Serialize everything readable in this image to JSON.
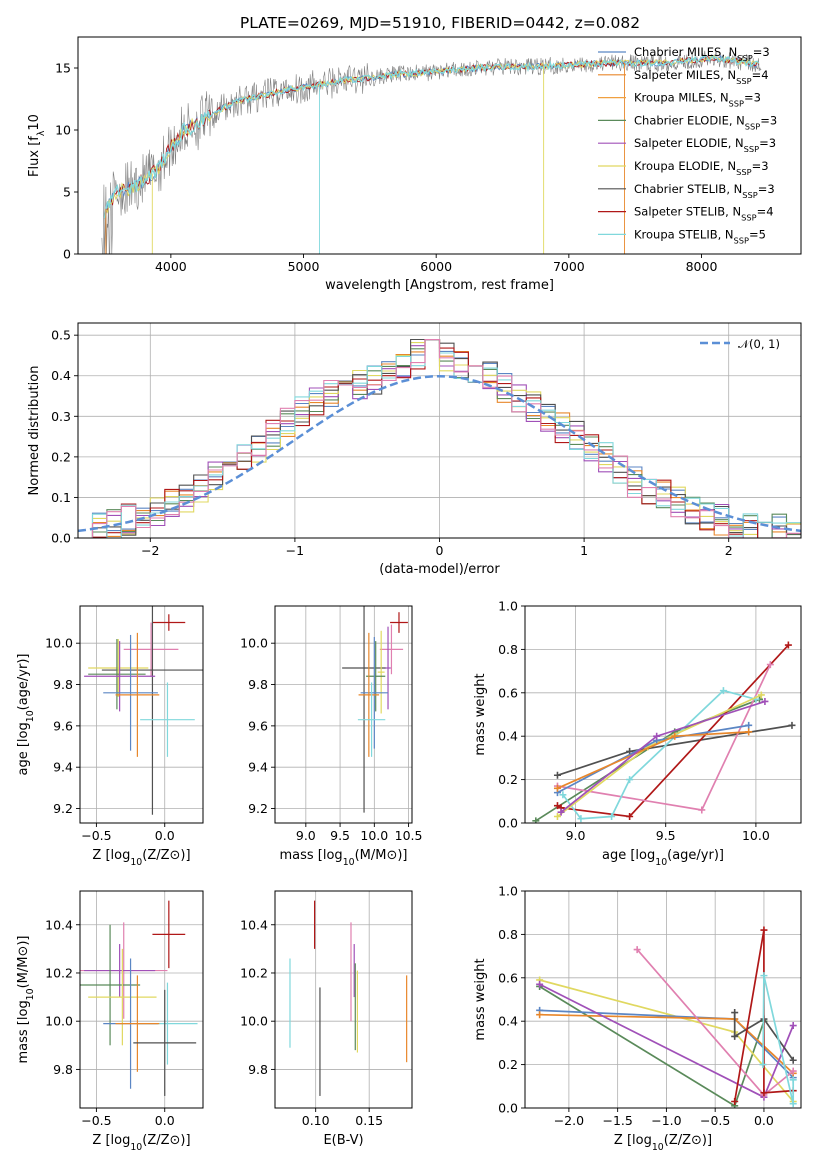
{
  "title": "PLATE=0269, MJD=51910, FIBERID=0442, z=0.082",
  "colors": {
    "Chabrier MILES": "#5b86c4",
    "Salpeter MILES": "#e8872b",
    "Kroupa MILES": "#f0a040",
    "Chabrier ELODIE": "#5a8a5a",
    "Salpeter ELODIE": "#a050b8",
    "Kroupa ELODIE": "#e0d860",
    "Chabrier STELIB": "#505050",
    "Salpeter STELIB": "#b01818",
    "Kroupa STELIB": "#80d8dc",
    "pink": "#e080b0",
    "data": "#808080",
    "normal": "#5b8fd6"
  },
  "chart_data": [
    {
      "id": "spectrum",
      "type": "line",
      "xlabel": "wavelength [Angstrom, rest frame]",
      "ylabel": "Flux [f",
      "xlim": [
        3300,
        8750
      ],
      "ylim": [
        0,
        17.5
      ],
      "xticks": [
        "4000",
        "5000",
        "6000",
        "7000",
        "8000"
      ],
      "xtick_values": [
        4000,
        5000,
        6000,
        7000,
        8000
      ],
      "yticks": [
        "0",
        "5",
        "10",
        "15"
      ],
      "ytick_values": [
        0,
        5,
        10,
        15
      ],
      "legend_position": "right",
      "legend": [
        {
          "label": "Chabrier MILES, N",
          "sub": "SSP",
          "suffix": "=3",
          "key": "Chabrier MILES"
        },
        {
          "label": "Salpeter MILES, N",
          "sub": "SSP",
          "suffix": "=4",
          "key": "Salpeter MILES"
        },
        {
          "label": "Kroupa MILES, N",
          "sub": "SSP",
          "suffix": "=3",
          "key": "Kroupa MILES"
        },
        {
          "label": "Chabrier ELODIE, N",
          "sub": "SSP",
          "suffix": "=3",
          "key": "Chabrier ELODIE"
        },
        {
          "label": "Salpeter ELODIE, N",
          "sub": "SSP",
          "suffix": "=3",
          "key": "Salpeter ELODIE"
        },
        {
          "label": "Kroupa ELODIE, N",
          "sub": "SSP",
          "suffix": "=3",
          "key": "Kroupa ELODIE"
        },
        {
          "label": "Chabrier STELIB, N",
          "sub": "SSP",
          "suffix": "=3",
          "key": "Chabrier STELIB"
        },
        {
          "label": "Salpeter STELIB, N",
          "sub": "SSP",
          "suffix": "=4",
          "key": "Salpeter STELIB"
        },
        {
          "label": "Kroupa STELIB, N",
          "sub": "SSP",
          "suffix": "=5",
          "key": "Kroupa STELIB"
        }
      ],
      "continuum": {
        "x": [
          3500,
          3600,
          3700,
          3800,
          3900,
          4000,
          4100,
          4200,
          4300,
          4400,
          4500,
          4700,
          4900,
          5100,
          5300,
          5500,
          5700,
          5900,
          6100,
          6300,
          6500,
          6700,
          6900,
          7100,
          7300,
          7500,
          7700,
          7900,
          8100,
          8300,
          8400
        ],
        "y": [
          3.5,
          5.0,
          5.3,
          6.0,
          6.8,
          8.6,
          10.0,
          10.5,
          11.2,
          11.8,
          12.3,
          12.8,
          13.3,
          13.6,
          14.0,
          14.2,
          14.5,
          14.6,
          14.8,
          15.0,
          15.1,
          15.1,
          15.2,
          15.3,
          15.4,
          15.4,
          15.4,
          15.6,
          15.8,
          15.5,
          15.3
        ]
      }
    },
    {
      "id": "residuals",
      "type": "line",
      "xlabel": "(data-model)/error",
      "ylabel": "Normed distribution",
      "xlim": [
        -2.5,
        2.5
      ],
      "ylim": [
        0,
        0.53
      ],
      "xticks": [
        "−2",
        "−1",
        "0",
        "1",
        "2"
      ],
      "xtick_values": [
        -2,
        -1,
        0,
        1,
        2
      ],
      "yticks": [
        "0.0",
        "0.1",
        "0.2",
        "0.3",
        "0.4",
        "0.5"
      ],
      "ytick_values": [
        0,
        0.1,
        0.2,
        0.3,
        0.4,
        0.5
      ],
      "grid": true,
      "legend": "𝒩(0, 1)",
      "legend_position": "top-right",
      "hist_x": [
        -2.5,
        -2.3,
        -2.1,
        -1.9,
        -1.7,
        -1.5,
        -1.3,
        -1.1,
        -0.9,
        -0.7,
        -0.5,
        -0.3,
        -0.1,
        0.1,
        0.3,
        0.5,
        0.7,
        0.9,
        1.1,
        1.3,
        1.5,
        1.7,
        1.9,
        2.1,
        2.3,
        2.5
      ],
      "hist_y": [
        0.02,
        0.03,
        0.05,
        0.07,
        0.11,
        0.16,
        0.21,
        0.27,
        0.33,
        0.37,
        0.38,
        0.42,
        0.46,
        0.44,
        0.41,
        0.36,
        0.31,
        0.26,
        0.21,
        0.15,
        0.11,
        0.08,
        0.05,
        0.03,
        0.02,
        0.015
      ]
    },
    {
      "id": "age-vs-Z",
      "type": "scatter",
      "xlabel": "Z [log",
      "ylabel": "age  [log",
      "xlim": [
        -0.62,
        0.28
      ],
      "ylim": [
        9.13,
        10.18
      ],
      "xticks": [
        "−0.5",
        "0.0"
      ],
      "xtick_values": [
        -0.5,
        0.0
      ],
      "yticks": [
        "9.2",
        "9.4",
        "9.6",
        "9.8",
        "10.0"
      ],
      "ytick_values": [
        9.2,
        9.4,
        9.6,
        9.8,
        10.0
      ],
      "grid": true,
      "points": [
        {
          "key": "Salpeter STELIB",
          "x": 0.03,
          "y": 10.1,
          "xerr": 0.12,
          "yerr": 0.04
        },
        {
          "key": "pink",
          "x": -0.1,
          "y": 9.97,
          "xerr": 0.2,
          "yerr": 0.13
        },
        {
          "key": "Chabrier STELIB",
          "x": -0.09,
          "y": 9.87,
          "xerr": 0.37,
          "yerr": 0.7
        },
        {
          "key": "Kroupa ELODIE",
          "x": -0.34,
          "y": 9.88,
          "xerr": 0.22,
          "yerr": 0.14
        },
        {
          "key": "Chabrier ELODIE",
          "x": -0.35,
          "y": 9.85,
          "xerr": 0.21,
          "yerr": 0.17
        },
        {
          "key": "Salpeter ELODIE",
          "x": -0.33,
          "y": 9.84,
          "xerr": 0.26,
          "yerr": 0.17
        },
        {
          "key": "Chabrier MILES",
          "x": -0.25,
          "y": 9.76,
          "xerr": 0.2,
          "yerr": 0.28
        },
        {
          "key": "Salpeter MILES",
          "x": -0.2,
          "y": 9.75,
          "xerr": 0.16,
          "yerr": 0.3
        },
        {
          "key": "Kroupa STELIB",
          "x": 0.02,
          "y": 9.63,
          "xerr": 0.2,
          "yerr": 0.18
        }
      ]
    },
    {
      "id": "age-vs-mass",
      "type": "scatter",
      "xlabel": "mass [log",
      "ylabel": "",
      "xlim": [
        8.55,
        10.55
      ],
      "ylim": [
        9.13,
        10.18
      ],
      "xticks": [
        "9.0",
        "9.5",
        "10.0",
        "10.5"
      ],
      "xtick_values": [
        9.0,
        9.5,
        10.0,
        10.5
      ],
      "yticks": [
        "9.2",
        "9.4",
        "9.6",
        "9.8",
        "10.0"
      ],
      "ytick_values": [
        9.2,
        9.4,
        9.6,
        9.8,
        10.0
      ],
      "grid": true,
      "points": [
        {
          "key": "Salpeter STELIB",
          "x": 10.36,
          "y": 10.1,
          "xerr": 0.13,
          "yerr": 0.05
        },
        {
          "key": "pink",
          "x": 10.25,
          "y": 9.97,
          "xerr": 0.17,
          "yerr": 0.12
        },
        {
          "key": "Chabrier STELIB",
          "x": 9.85,
          "y": 9.88,
          "xerr": 0.32,
          "yerr": 0.7
        },
        {
          "key": "Salpeter ELODIE",
          "x": 10.2,
          "y": 9.88,
          "xerr": 0.04,
          "yerr": 0.2
        },
        {
          "key": "Kroupa ELODIE",
          "x": 10.1,
          "y": 9.86,
          "xerr": 0.05,
          "yerr": 0.2
        },
        {
          "key": "Chabrier ELODIE",
          "x": 10.02,
          "y": 9.84,
          "xerr": 0.14,
          "yerr": 0.17
        },
        {
          "key": "Chabrier MILES",
          "x": 10.0,
          "y": 9.76,
          "xerr": 0.2,
          "yerr": 0.27
        },
        {
          "key": "Salpeter MILES",
          "x": 9.92,
          "y": 9.75,
          "xerr": 0.15,
          "yerr": 0.3
        },
        {
          "key": "Kroupa STELIB",
          "x": 9.96,
          "y": 9.63,
          "xerr": 0.2,
          "yerr": 0.18
        }
      ]
    },
    {
      "id": "weight-vs-age",
      "type": "line",
      "xlabel": "age  [log",
      "ylabel": "mass weight",
      "xlim": [
        8.72,
        10.25
      ],
      "ylim": [
        0,
        1.0
      ],
      "xticks": [
        "9.0",
        "9.5",
        "10.0"
      ],
      "xtick_values": [
        9.0,
        9.5,
        10.0
      ],
      "yticks": [
        "0.0",
        "0.2",
        "0.4",
        "0.6",
        "0.8",
        "1.0"
      ],
      "ytick_values": [
        0,
        0.2,
        0.4,
        0.6,
        0.8,
        1.0
      ],
      "grid": true,
      "series": [
        {
          "key": "Chabrier ELODIE",
          "x": [
            8.78,
            9.55,
            10.02
          ],
          "y": [
            0.01,
            0.42,
            0.57
          ]
        },
        {
          "key": "Chabrier STELIB",
          "x": [
            8.9,
            9.3,
            10.2
          ],
          "y": [
            0.22,
            0.33,
            0.45
          ]
        },
        {
          "key": "Salpeter STELIB",
          "x": [
            8.9,
            8.92,
            9.3,
            10.18
          ],
          "y": [
            0.08,
            0.07,
            0.03,
            0.82
          ]
        },
        {
          "key": "pink",
          "x": [
            8.9,
            9.7,
            10.08
          ],
          "y": [
            0.17,
            0.06,
            0.73
          ]
        },
        {
          "key": "Kroupa STELIB",
          "x": [
            8.93,
            9.03,
            9.2,
            9.3,
            9.82,
            10.0
          ],
          "y": [
            0.13,
            0.02,
            0.03,
            0.2,
            0.61,
            0.57
          ]
        },
        {
          "key": "Kroupa ELODIE",
          "x": [
            8.9,
            9.4,
            10.03
          ],
          "y": [
            0.03,
            0.35,
            0.59
          ]
        },
        {
          "key": "Chabrier MILES",
          "x": [
            8.9,
            9.45,
            9.96
          ],
          "y": [
            0.14,
            0.38,
            0.45
          ]
        },
        {
          "key": "Salpeter MILES",
          "x": [
            8.9,
            9.55,
            9.96
          ],
          "y": [
            0.16,
            0.4,
            0.42
          ]
        },
        {
          "key": "Salpeter ELODIE",
          "x": [
            8.92,
            9.45,
            10.05
          ],
          "y": [
            0.05,
            0.4,
            0.56
          ]
        }
      ]
    },
    {
      "id": "mass-vs-Z",
      "type": "scatter",
      "xlabel": "Z [log",
      "ylabel": "mass [log",
      "xlim": [
        -0.62,
        0.28
      ],
      "ylim": [
        9.64,
        10.54
      ],
      "xticks": [
        "−0.5",
        "0.0"
      ],
      "xtick_values": [
        -0.5,
        0.0
      ],
      "yticks": [
        "9.8",
        "10.0",
        "10.2",
        "10.4"
      ],
      "ytick_values": [
        9.8,
        10.0,
        10.2,
        10.4
      ],
      "grid": true,
      "points": [
        {
          "key": "Salpeter STELIB",
          "x": 0.03,
          "y": 10.36,
          "xerr": 0.12,
          "yerr": 0.14
        },
        {
          "key": "pink",
          "x": -0.3,
          "y": 10.21,
          "xerr": 0.32,
          "yerr": 0.2
        },
        {
          "key": "Salpeter ELODIE",
          "x": -0.33,
          "y": 10.21,
          "xerr": 0.26,
          "yerr": 0.11
        },
        {
          "key": "Chabrier ELODIE",
          "x": -0.4,
          "y": 10.15,
          "xerr": 0.22,
          "yerr": 0.25
        },
        {
          "key": "Kroupa ELODIE",
          "x": -0.31,
          "y": 10.1,
          "xerr": 0.25,
          "yerr": 0.2
        },
        {
          "key": "Kroupa STELIB",
          "x": 0.02,
          "y": 9.99,
          "xerr": 0.22,
          "yerr": 0.17
        },
        {
          "key": "Chabrier MILES",
          "x": -0.25,
          "y": 9.99,
          "xerr": 0.2,
          "yerr": 0.27
        },
        {
          "key": "Salpeter MILES",
          "x": -0.2,
          "y": 9.99,
          "xerr": 0.16,
          "yerr": 0.2
        },
        {
          "key": "Chabrier STELIB",
          "x": 0.0,
          "y": 9.91,
          "xerr": 0.23,
          "yerr": 0.22
        }
      ]
    },
    {
      "id": "mass-vs-EBV",
      "type": "scatter",
      "xlabel": "E(B-V)",
      "ylabel": "",
      "xlim": [
        0.062,
        0.19
      ],
      "ylim": [
        9.64,
        10.54
      ],
      "xticks": [
        "0.10",
        "0.15"
      ],
      "xtick_values": [
        0.1,
        0.15
      ],
      "yticks": [
        "9.8",
        "10.0",
        "10.2",
        "10.4"
      ],
      "ytick_values": [
        9.8,
        10.0,
        10.2,
        10.4
      ],
      "grid": true,
      "bars": [
        {
          "key": "Kroupa STELIB",
          "x": 0.076,
          "y0": 9.89,
          "y1": 10.26
        },
        {
          "key": "Salpeter STELIB",
          "x": 0.099,
          "y0": 10.3,
          "y1": 10.5
        },
        {
          "key": "Chabrier STELIB",
          "x": 0.104,
          "y0": 9.69,
          "y1": 10.14
        },
        {
          "key": "pink",
          "x": 0.133,
          "y0": 10.0,
          "y1": 10.41
        },
        {
          "key": "Salpeter ELODIE",
          "x": 0.136,
          "y0": 10.1,
          "y1": 10.32
        },
        {
          "key": "Chabrier ELODIE",
          "x": 0.137,
          "y0": 9.88,
          "y1": 10.24
        },
        {
          "key": "Kroupa ELODIE",
          "x": 0.139,
          "y0": 9.87,
          "y1": 10.21
        },
        {
          "key": "Salpeter MILES",
          "x": 0.185,
          "y0": 9.83,
          "y1": 10.19
        }
      ]
    },
    {
      "id": "weight-vs-Z",
      "type": "line",
      "xlabel": "Z [log",
      "ylabel": "mass weight",
      "xlim": [
        -2.45,
        0.38
      ],
      "ylim": [
        0,
        1.0
      ],
      "xticks": [
        "−2.0",
        "−1.5",
        "−1.0",
        "−0.5",
        "0.0"
      ],
      "xtick_values": [
        -2.0,
        -1.5,
        -1.0,
        -0.5,
        0.0
      ],
      "yticks": [
        "0.0",
        "0.2",
        "0.4",
        "0.6",
        "0.8",
        "1.0"
      ],
      "ytick_values": [
        0,
        0.2,
        0.4,
        0.6,
        0.8,
        1.0
      ],
      "grid": true,
      "series": [
        {
          "key": "Chabrier ELODIE",
          "x": [
            -2.3,
            -0.3,
            0.0
          ],
          "y": [
            0.56,
            0.01,
            0.4
          ]
        },
        {
          "key": "Kroupa ELODIE",
          "x": [
            -2.3,
            -0.3,
            0.3
          ],
          "y": [
            0.59,
            0.35,
            0.03
          ]
        },
        {
          "key": "Chabrier MILES",
          "x": [
            -2.3,
            -0.3,
            0.3
          ],
          "y": [
            0.45,
            0.41,
            0.14
          ]
        },
        {
          "key": "Salpeter MILES",
          "x": [
            -2.3,
            -0.3,
            0.3
          ],
          "y": [
            0.43,
            0.41,
            0.16
          ]
        },
        {
          "key": "Salpeter ELODIE",
          "x": [
            -2.3,
            0.0,
            0.3
          ],
          "y": [
            0.57,
            0.05,
            0.38
          ]
        },
        {
          "key": "pink",
          "x": [
            -1.3,
            0.0,
            0.3
          ],
          "y": [
            0.73,
            0.06,
            0.17
          ]
        },
        {
          "key": "Chabrier STELIB",
          "x": [
            -0.3,
            -0.3,
            0.0,
            0.3
          ],
          "y": [
            0.44,
            0.33,
            0.41,
            0.22
          ]
        },
        {
          "key": "Salpeter STELIB",
          "x": [
            -0.3,
            0.0,
            0.0,
            0.3
          ],
          "y": [
            0.03,
            0.82,
            0.07,
            0.08
          ]
        },
        {
          "key": "Kroupa STELIB",
          "x": [
            -0.01,
            0.0,
            0.3,
            0.3
          ],
          "y": [
            0.2,
            0.61,
            0.02,
            0.13
          ]
        }
      ]
    }
  ]
}
